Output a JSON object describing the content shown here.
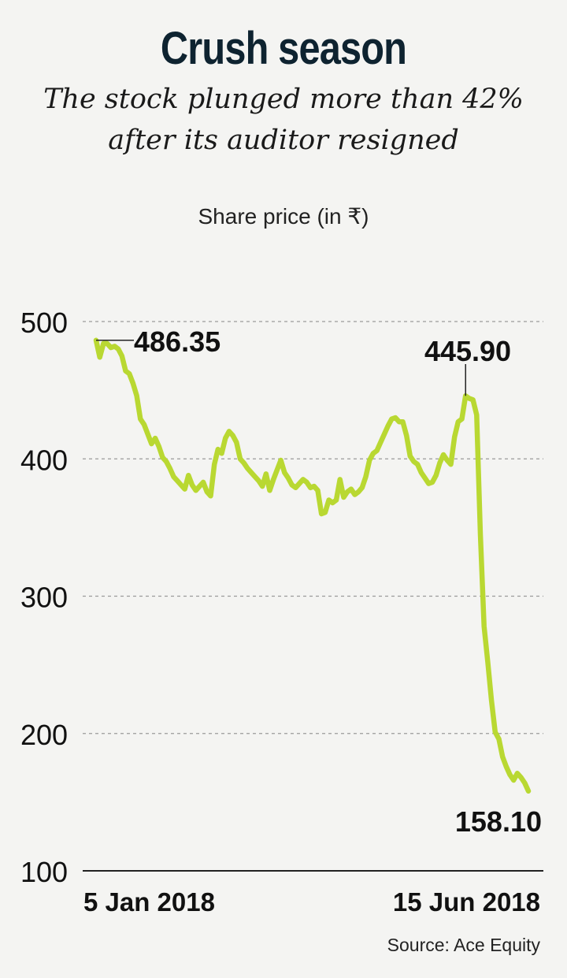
{
  "title": "Crush season",
  "subtitle_line1": "The stock plunged more than 42%",
  "subtitle_line2": "after its auditor resigned",
  "unit_label": "Share price (in ₹)",
  "source": "Source: Ace Equity",
  "colors": {
    "line": "#b9d832",
    "background": "#f4f4f2",
    "gridline": "#9a9a9a",
    "text": "#111111",
    "title": "#0e2330"
  },
  "chart_data": {
    "type": "line",
    "title": "",
    "ylabel": "Share price (in ₹)",
    "ylim": [
      100,
      500
    ],
    "yticks": [
      100,
      200,
      300,
      400,
      500
    ],
    "grid": true,
    "x_tick_labels": [
      "5 Jan 2018",
      "15 Jun 2018"
    ],
    "annotations": [
      {
        "label": "486.35",
        "value": 486.35,
        "index": 0
      },
      {
        "label": "445.90",
        "value": 445.9,
        "index": 100
      },
      {
        "label": "158.10",
        "value": 158.1,
        "index": 117
      }
    ],
    "series": [
      {
        "values": [
          486.35,
          474,
          484,
          484,
          481,
          482,
          480,
          475,
          464,
          462,
          455,
          446,
          429,
          425,
          418,
          411,
          415,
          409,
          401,
          398,
          393,
          387,
          384,
          381,
          378,
          388,
          381,
          377,
          380,
          383,
          376,
          373,
          396,
          407,
          404,
          415,
          420,
          417,
          412,
          400,
          397,
          393,
          390,
          387,
          384,
          380,
          389,
          377,
          385,
          392,
          399,
          390,
          386,
          381,
          379,
          382,
          385,
          383,
          379,
          380,
          377,
          360,
          361,
          370,
          368,
          370,
          385,
          372,
          376,
          378,
          374,
          376,
          379,
          387,
          399,
          404,
          406,
          412,
          418,
          424,
          429,
          430,
          427,
          427,
          417,
          402,
          398,
          396,
          390,
          386,
          382,
          383,
          388,
          397,
          403,
          399,
          396,
          416,
          427,
          429,
          445.9,
          444,
          443,
          432,
          345,
          278,
          252,
          224,
          201,
          196,
          183,
          176,
          170,
          166,
          171,
          168,
          164,
          158.1
        ]
      }
    ]
  }
}
